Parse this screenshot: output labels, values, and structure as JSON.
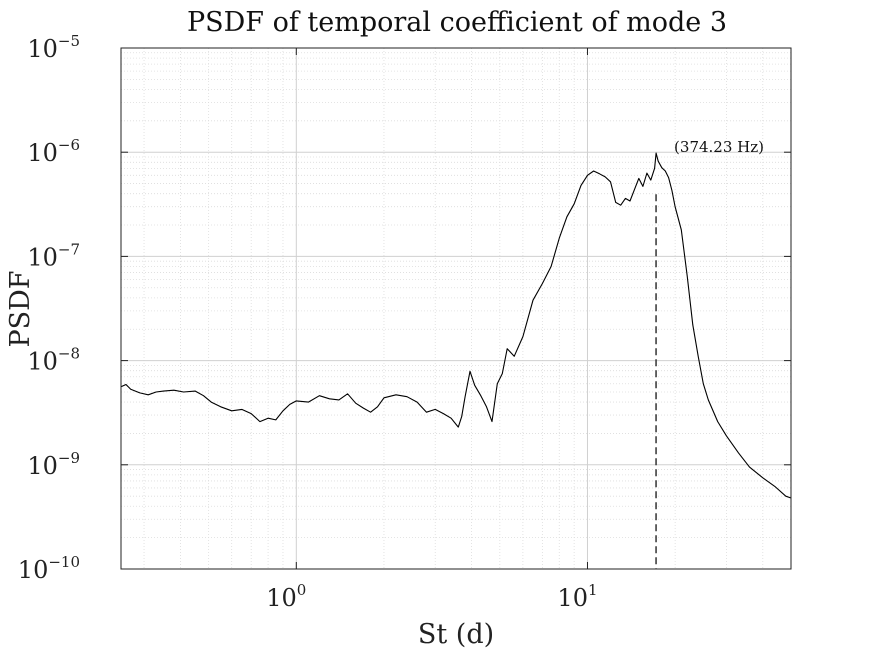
{
  "chart_data": {
    "type": "line",
    "scale": {
      "x": "log",
      "y": "log"
    },
    "title": "PSDF of temporal coefficient of mode 3",
    "xlabel": "St (d)",
    "ylabel": "PSDF",
    "xlim": [
      0.25,
      50
    ],
    "ylim": [
      1e-10,
      1e-05
    ],
    "x_ticks": [
      {
        "base": "10",
        "exp": "0",
        "value": 1
      },
      {
        "base": "10",
        "exp": "1",
        "value": 10
      }
    ],
    "y_ticks": [
      {
        "base": "10",
        "exp": "−5",
        "value": 1e-05
      },
      {
        "base": "10",
        "exp": "−6",
        "value": 1e-06
      },
      {
        "base": "10",
        "exp": "−7",
        "value": 1e-07
      },
      {
        "base": "10",
        "exp": "−8",
        "value": 1e-08
      },
      {
        "base": "10",
        "exp": "−9",
        "value": 1e-09
      },
      {
        "base": "10",
        "exp": "−10",
        "value": 1e-10
      }
    ],
    "grid": true,
    "series": [
      {
        "name": "PSDF",
        "color": "#000000",
        "points": [
          [
            0.25,
            5.6e-09
          ],
          [
            0.26,
            5.9e-09
          ],
          [
            0.27,
            5.3e-09
          ],
          [
            0.29,
            4.9e-09
          ],
          [
            0.31,
            4.7e-09
          ],
          [
            0.33,
            5e-09
          ],
          [
            0.35,
            5.1e-09
          ],
          [
            0.38,
            5.2e-09
          ],
          [
            0.41,
            5e-09
          ],
          [
            0.45,
            5.1e-09
          ],
          [
            0.48,
            4.6e-09
          ],
          [
            0.51,
            4e-09
          ],
          [
            0.55,
            3.6e-09
          ],
          [
            0.6,
            3.3e-09
          ],
          [
            0.65,
            3.4e-09
          ],
          [
            0.7,
            3.1e-09
          ],
          [
            0.75,
            2.6e-09
          ],
          [
            0.8,
            2.8e-09
          ],
          [
            0.85,
            2.7e-09
          ],
          [
            0.9,
            3.3e-09
          ],
          [
            0.95,
            3.8e-09
          ],
          [
            1.0,
            4.1e-09
          ],
          [
            1.1,
            4e-09
          ],
          [
            1.2,
            4.6e-09
          ],
          [
            1.3,
            4.3e-09
          ],
          [
            1.4,
            4.2e-09
          ],
          [
            1.5,
            4.8e-09
          ],
          [
            1.6,
            3.9e-09
          ],
          [
            1.7,
            3.5e-09
          ],
          [
            1.8,
            3.2e-09
          ],
          [
            1.9,
            3.6e-09
          ],
          [
            2.0,
            4.4e-09
          ],
          [
            2.2,
            4.7e-09
          ],
          [
            2.4,
            4.5e-09
          ],
          [
            2.6,
            4e-09
          ],
          [
            2.8,
            3.2e-09
          ],
          [
            3.0,
            3.4e-09
          ],
          [
            3.2,
            3.1e-09
          ],
          [
            3.4,
            2.8e-09
          ],
          [
            3.6,
            2.3e-09
          ],
          [
            3.7,
            2.9e-09
          ],
          [
            3.8,
            4.5e-09
          ],
          [
            3.95,
            7.9e-09
          ],
          [
            4.1,
            5.8e-09
          ],
          [
            4.3,
            4.6e-09
          ],
          [
            4.5,
            3.6e-09
          ],
          [
            4.7,
            2.6e-09
          ],
          [
            4.9,
            6e-09
          ],
          [
            5.1,
            7.5e-09
          ],
          [
            5.3,
            1.3e-08
          ],
          [
            5.6,
            1.1e-08
          ],
          [
            6.0,
            1.7e-08
          ],
          [
            6.5,
            3.8e-08
          ],
          [
            7.0,
            5.5e-08
          ],
          [
            7.5,
            8e-08
          ],
          [
            8.0,
            1.5e-07
          ],
          [
            8.5,
            2.4e-07
          ],
          [
            9.0,
            3.2e-07
          ],
          [
            9.5,
            4.8e-07
          ],
          [
            10.0,
            6e-07
          ],
          [
            10.5,
            6.6e-07
          ],
          [
            11.0,
            6.2e-07
          ],
          [
            11.5,
            5.8e-07
          ],
          [
            12.0,
            5.2e-07
          ],
          [
            12.5,
            3.3e-07
          ],
          [
            13.0,
            3.1e-07
          ],
          [
            13.5,
            3.6e-07
          ],
          [
            14.0,
            3.4e-07
          ],
          [
            14.5,
            4.4e-07
          ],
          [
            15.0,
            5.6e-07
          ],
          [
            15.5,
            4.7e-07
          ],
          [
            16.0,
            6.3e-07
          ],
          [
            16.5,
            5.4e-07
          ],
          [
            17.0,
            7e-07
          ],
          [
            17.2,
            9.8e-07
          ],
          [
            17.5,
            8.2e-07
          ],
          [
            18.0,
            7.1e-07
          ],
          [
            18.5,
            6.6e-07
          ],
          [
            19.0,
            5.7e-07
          ],
          [
            19.5,
            4.3e-07
          ],
          [
            20.0,
            3e-07
          ],
          [
            21.0,
            1.8e-07
          ],
          [
            22.0,
            6.5e-08
          ],
          [
            23.0,
            2.2e-08
          ],
          [
            24.0,
            1.1e-08
          ],
          [
            25.0,
            6e-09
          ],
          [
            26.0,
            4.2e-09
          ],
          [
            28.0,
            2.6e-09
          ],
          [
            30.0,
            1.9e-09
          ],
          [
            33.0,
            1.3e-09
          ],
          [
            36.0,
            9.5e-10
          ],
          [
            40.0,
            7.5e-10
          ],
          [
            44.0,
            6.2e-10
          ],
          [
            48.0,
            5e-10
          ],
          [
            50.0,
            4.8e-10
          ]
        ]
      }
    ],
    "annotations": [
      {
        "text": "(374.23 Hz)",
        "x": 17.2,
        "y": 1e-06,
        "marker": "dashed vertical line"
      }
    ]
  }
}
